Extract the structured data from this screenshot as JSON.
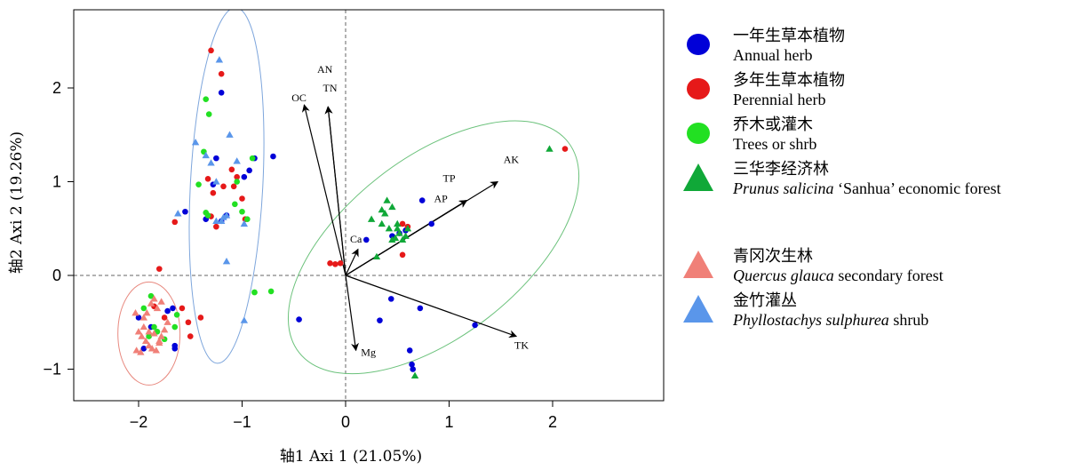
{
  "chart_data": {
    "type": "scatter",
    "xlabel": "轴1 Axi 1 (21.05%)",
    "ylabel": "轴2 Axi 2 (19.26%)",
    "xlim": [
      -2.65,
      3.1
    ],
    "ylim": [
      -1.35,
      2.8
    ],
    "xticks": [
      -2,
      -1,
      0,
      1,
      2
    ],
    "xtick_labels": [
      "−2",
      "−1",
      "0",
      "1",
      "2"
    ],
    "yticks": [
      -1,
      0,
      1,
      2
    ],
    "ytick_labels": [
      "−1",
      "0",
      "1",
      "2"
    ],
    "grid": false,
    "legend_position": "outside-right",
    "reference_lines": {
      "x": 0,
      "y": 0,
      "style": "dashed"
    },
    "colors": {
      "annual_herb": "#0000d8",
      "perennial_herb": "#e61919",
      "trees_shrub": "#22e022",
      "prunus": "#10a838",
      "quercus": "#f08078",
      "phyllostachys": "#5a96ea",
      "ellipse_red": "#e88a80",
      "ellipse_blue": "#7ea6dc",
      "ellipse_green": "#6cc27c"
    },
    "legend": [
      {
        "cn": "一年生草本植物",
        "en": "Annual herb",
        "en_italic": "",
        "en_rest": "",
        "marker": "circle",
        "color_key": "annual_herb"
      },
      {
        "cn": "多年生草本植物",
        "en": "Perennial herb",
        "en_italic": "",
        "en_rest": "",
        "marker": "circle",
        "color_key": "perennial_herb"
      },
      {
        "cn": "乔木或灌木",
        "en": "Trees or shrb",
        "en_italic": "",
        "en_rest": "",
        "marker": "circle",
        "color_key": "trees_shrub"
      },
      {
        "cn": "三华李经济林",
        "en": "",
        "en_italic": "Prunus salicina",
        "en_rest": " ‘Sanhua’ economic forest",
        "marker": "triangle",
        "color_key": "prunus"
      },
      {
        "cn": "青冈次生林",
        "en": "",
        "en_italic": "Quercus glauca",
        "en_rest": " secondary forest",
        "marker": "triangle",
        "color_key": "quercus"
      },
      {
        "cn": "金竹灌丛",
        "en": "",
        "en_italic": "Phyllostachys sulphurea",
        "en_rest": " shrub",
        "marker": "triangle",
        "color_key": "phyllostachys"
      }
    ],
    "vectors": [
      {
        "name": "AN",
        "x": 0,
        "y": 0,
        "dx": -0.17,
        "dy": 1.8
      },
      {
        "name": "TN",
        "x": 0,
        "y": 0,
        "dx": -0.17,
        "dy": 1.8
      },
      {
        "name": "OC",
        "x": 0,
        "y": 0,
        "dx": -0.4,
        "dy": 1.82
      },
      {
        "name": "Ca",
        "x": 0,
        "y": 0,
        "dx": 0.12,
        "dy": 0.28
      },
      {
        "name": "TP",
        "x": 0,
        "y": 0,
        "dx": 1.17,
        "dy": 0.8
      },
      {
        "name": "AP",
        "x": 0,
        "y": 0,
        "dx": 1.17,
        "dy": 0.8
      },
      {
        "name": "AK",
        "x": 0,
        "y": 0,
        "dx": 1.47,
        "dy": 1.0
      },
      {
        "name": "TK",
        "x": 0,
        "y": 0,
        "dx": 1.65,
        "dy": -0.65
      },
      {
        "name": "Mg",
        "x": 0,
        "y": 0,
        "dx": 0.1,
        "dy": -0.8
      }
    ],
    "vector_labels": [
      {
        "name": "AN",
        "x": -0.2,
        "y": 2.16
      },
      {
        "name": "TN",
        "x": -0.15,
        "y": 1.96
      },
      {
        "name": "OC",
        "x": -0.45,
        "y": 1.86
      },
      {
        "name": "Ca",
        "x": 0.1,
        "y": 0.35
      },
      {
        "name": "TP",
        "x": 1.0,
        "y": 1.0
      },
      {
        "name": "AP",
        "x": 0.92,
        "y": 0.78
      },
      {
        "name": "AK",
        "x": 1.6,
        "y": 1.2
      },
      {
        "name": "TK",
        "x": 1.7,
        "y": -0.78
      },
      {
        "name": "Mg",
        "x": 0.22,
        "y": -0.86
      }
    ],
    "ellipses": [
      {
        "group": "quercus",
        "cx": -1.9,
        "cy": -0.62,
        "rx": 0.3,
        "ry": 0.55,
        "angle": 0,
        "color_key": "ellipse_red"
      },
      {
        "group": "phyllostachys",
        "cx": -1.15,
        "cy": 0.96,
        "rx": 0.35,
        "ry": 1.9,
        "angle": -3,
        "color_key": "ellipse_blue"
      },
      {
        "group": "prunus",
        "cx": 0.85,
        "cy": 0.3,
        "rx": 1.65,
        "ry": 0.95,
        "angle": 38,
        "color_key": "ellipse_green"
      }
    ],
    "series": [
      {
        "name": "Annual herb",
        "marker": "circle",
        "color_key": "annual_herb",
        "x": [
          -1.2,
          -1.25,
          -1.55,
          -1.65,
          -1.95,
          -2.0,
          -1.88,
          -1.72,
          -1.65,
          -1.67,
          -0.88,
          -0.93,
          -0.98,
          -0.7,
          -1.15,
          -1.35,
          -1.2,
          -1.28,
          -0.45,
          0.33,
          0.44,
          0.52,
          0.58,
          0.62,
          0.65,
          0.64,
          0.74,
          0.83,
          1.25,
          0.45,
          0.2,
          0.72
        ],
        "y": [
          1.95,
          1.25,
          0.68,
          -0.75,
          -0.78,
          -0.45,
          -0.55,
          -0.38,
          -0.78,
          -0.35,
          1.25,
          1.12,
          1.05,
          1.27,
          0.64,
          0.6,
          0.58,
          0.97,
          -0.47,
          -0.48,
          -0.25,
          0.45,
          0.48,
          -0.8,
          -1.0,
          -0.95,
          0.8,
          0.55,
          -0.53,
          0.42,
          0.38,
          -0.35
        ]
      },
      {
        "name": "Perennial herb",
        "marker": "circle",
        "color_key": "perennial_herb",
        "x": [
          -1.3,
          -1.2,
          -1.1,
          -1.18,
          -1.3,
          -1.25,
          -1.65,
          -1.28,
          -1.05,
          -1.08,
          -1.0,
          -1.4,
          -0.97,
          -1.8,
          -1.85,
          -1.75,
          -1.58,
          -1.52,
          -1.5,
          -0.15,
          -0.1,
          -0.05,
          0.55,
          0.6,
          0.55,
          2.12,
          -1.33
        ],
        "y": [
          2.4,
          2.15,
          1.13,
          0.95,
          0.63,
          0.52,
          0.57,
          0.88,
          1.05,
          0.95,
          0.82,
          -0.45,
          0.6,
          0.07,
          -0.33,
          -0.45,
          -0.35,
          -0.5,
          -0.65,
          0.13,
          0.12,
          0.13,
          0.55,
          0.52,
          0.22,
          1.35,
          1.03
        ]
      },
      {
        "name": "Trees or shrb",
        "marker": "circle",
        "color_key": "trees_shrub",
        "x": [
          -1.35,
          -1.32,
          -1.42,
          -1.37,
          -1.07,
          -0.9,
          -1.05,
          -1.0,
          -0.95,
          -0.88,
          -1.33,
          -1.35,
          -1.88,
          -1.85,
          -1.95,
          -1.65,
          -1.63,
          -0.72,
          -0.88,
          -1.75,
          -1.82,
          -1.9
        ],
        "y": [
          1.88,
          1.72,
          0.97,
          1.32,
          0.76,
          1.25,
          1.0,
          0.68,
          0.6,
          -0.18,
          0.64,
          0.67,
          -0.22,
          -0.55,
          -0.35,
          -0.55,
          -0.42,
          -0.17,
          -0.18,
          -0.68,
          -0.6,
          -0.65
        ]
      },
      {
        "name": "Prunus salicina ‘Sanhua’ economic forest",
        "marker": "triangle",
        "color_key": "prunus",
        "x": [
          0.4,
          0.45,
          0.38,
          0.42,
          0.35,
          0.5,
          0.52,
          0.55,
          0.48,
          0.45,
          0.58,
          0.6,
          0.5,
          0.3,
          0.25,
          0.35,
          1.97,
          0.67
        ],
        "y": [
          0.8,
          0.73,
          0.66,
          0.5,
          0.55,
          0.5,
          0.45,
          0.38,
          0.4,
          0.38,
          0.42,
          0.5,
          0.55,
          0.2,
          0.6,
          0.7,
          1.35,
          -1.07
        ]
      },
      {
        "name": "Quercus glauca secondary forest",
        "marker": "triangle",
        "color_key": "quercus",
        "x": [
          -2.0,
          -1.97,
          -1.93,
          -1.9,
          -1.87,
          -1.83,
          -1.8,
          -1.78,
          -1.75,
          -1.72,
          -1.98,
          -2.02,
          -1.95,
          -1.92,
          -1.88,
          -1.85,
          -1.82,
          -1.78,
          -1.95,
          -1.9,
          -1.85,
          -1.8,
          -2.03
        ],
        "y": [
          -0.6,
          -0.65,
          -0.7,
          -0.75,
          -0.78,
          -0.8,
          -0.72,
          -0.65,
          -0.58,
          -0.5,
          -0.82,
          -0.8,
          -0.45,
          -0.4,
          -0.3,
          -0.25,
          -0.35,
          -0.28,
          -0.55,
          -0.6,
          -0.62,
          -0.7,
          -0.4
        ]
      },
      {
        "name": "Phyllostachys sulphurea shrub",
        "marker": "triangle",
        "color_key": "phyllostachys",
        "x": [
          -1.22,
          -1.45,
          -1.35,
          -1.12,
          -1.05,
          -1.3,
          -1.62,
          -1.15,
          -1.18,
          -1.25,
          -1.2,
          -0.98,
          -1.15,
          -0.98,
          -1.25
        ],
        "y": [
          2.3,
          1.42,
          1.28,
          1.5,
          1.22,
          1.2,
          0.66,
          0.64,
          0.62,
          0.58,
          0.58,
          0.55,
          0.15,
          -0.48,
          1.0
        ]
      }
    ]
  }
}
